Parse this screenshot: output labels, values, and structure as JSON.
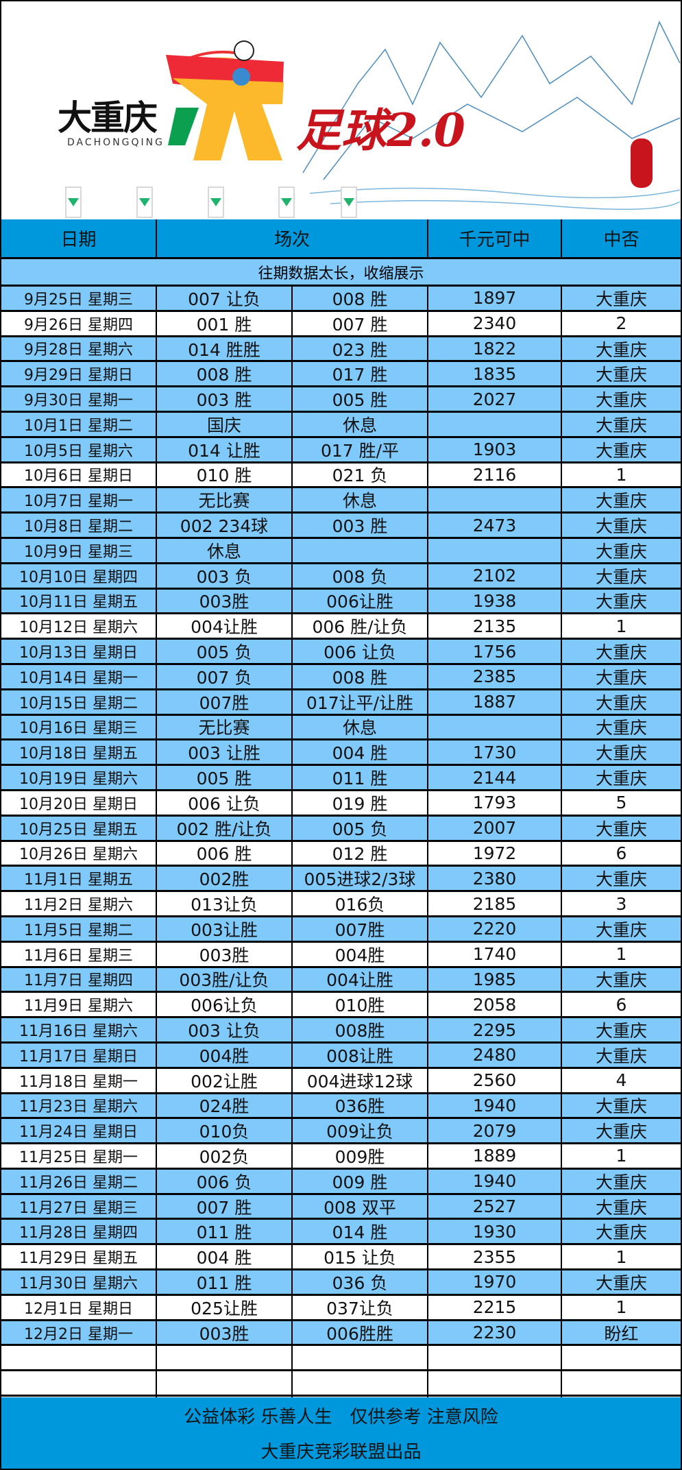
{
  "banner": {
    "brand": "大重庆",
    "brand_sub": "DACHONGQING",
    "title": "足球2.0",
    "colors": {
      "red": "#c8141c",
      "yellow": "#f7b52b",
      "green": "#0aa050"
    }
  },
  "header": {
    "date": "日期",
    "matches": "场次",
    "prize": "千元可中",
    "result": "中否"
  },
  "note": "往期数据太长，收缩展示",
  "rows": [
    {
      "date": "9月25日 星期三",
      "m1": "007 让负",
      "m2": "008 胜",
      "prize": "1897",
      "result": "大重庆",
      "hit": true
    },
    {
      "date": "9月26日 星期四",
      "m1": "001 胜",
      "m2": "007 胜",
      "prize": "2340",
      "result": "2",
      "hit": false
    },
    {
      "date": "9月28日 星期六",
      "m1": "014 胜胜",
      "m2": "023 胜",
      "prize": "1822",
      "result": "大重庆",
      "hit": true
    },
    {
      "date": "9月29日 星期日",
      "m1": "008 胜",
      "m2": "017 胜",
      "prize": "1835",
      "result": "大重庆",
      "hit": true
    },
    {
      "date": "9月30日 星期一",
      "m1": "003 胜",
      "m2": "005 胜",
      "prize": "2027",
      "result": "大重庆",
      "hit": true
    },
    {
      "date": "10月1日 星期二",
      "m1": "国庆",
      "m2": "休息",
      "prize": "",
      "result": "大重庆",
      "hit": true
    },
    {
      "date": "10月5日 星期六",
      "m1": "014 让胜",
      "m2": "017 胜/平",
      "prize": "1903",
      "result": "大重庆",
      "hit": true
    },
    {
      "date": "10月6日 星期日",
      "m1": "010 胜",
      "m2": "021 负",
      "prize": "2116",
      "result": "1",
      "hit": false
    },
    {
      "date": "10月7日 星期一",
      "m1": "无比赛",
      "m2": "休息",
      "prize": "",
      "result": "大重庆",
      "hit": true
    },
    {
      "date": "10月8日 星期二",
      "m1": "002 234球",
      "m2": "003 胜",
      "prize": "2473",
      "result": "大重庆",
      "hit": true
    },
    {
      "date": "10月9日 星期三",
      "m1": "休息",
      "m2": "",
      "prize": "",
      "result": "大重庆",
      "hit": true
    },
    {
      "date": "10月10日 星期四",
      "m1": "003 负",
      "m2": "008 负",
      "prize": "2102",
      "result": "大重庆",
      "hit": true
    },
    {
      "date": "10月11日 星期五",
      "m1": "003胜",
      "m2": "006让胜",
      "prize": "1938",
      "result": "大重庆",
      "hit": true
    },
    {
      "date": "10月12日 星期六",
      "m1": "004让胜",
      "m2": "006 胜/让负",
      "prize": "2135",
      "result": "1",
      "hit": false
    },
    {
      "date": "10月13日 星期日",
      "m1": "005 负",
      "m2": "006 让负",
      "prize": "1756",
      "result": "大重庆",
      "hit": true
    },
    {
      "date": "10月14日 星期一",
      "m1": "007 负",
      "m2": "008 胜",
      "prize": "2385",
      "result": "大重庆",
      "hit": true
    },
    {
      "date": "10月15日 星期二",
      "m1": "007胜",
      "m2": "017让平/让胜",
      "prize": "1887",
      "result": "大重庆",
      "hit": true
    },
    {
      "date": "10月16日 星期三",
      "m1": "无比赛",
      "m2": "休息",
      "prize": "",
      "result": "大重庆",
      "hit": true
    },
    {
      "date": "10月18日 星期五",
      "m1": "003 让胜",
      "m2": "004 胜",
      "prize": "1730",
      "result": "大重庆",
      "hit": true
    },
    {
      "date": "10月19日 星期六",
      "m1": "005 胜",
      "m2": "011 胜",
      "prize": "2144",
      "result": "大重庆",
      "hit": true
    },
    {
      "date": "10月20日 星期日",
      "m1": "006 让负",
      "m2": "019 胜",
      "prize": "1793",
      "result": "5",
      "hit": false
    },
    {
      "date": "10月25日 星期五",
      "m1": "002 胜/让负",
      "m2": "005 负",
      "prize": "2007",
      "result": "大重庆",
      "hit": true
    },
    {
      "date": "10月26日 星期六",
      "m1": "006 胜",
      "m2": "012 胜",
      "prize": "1972",
      "result": "6",
      "hit": false
    },
    {
      "date": "11月1日 星期五",
      "m1": "002胜",
      "m2": "005进球2/3球",
      "prize": "2380",
      "result": "大重庆",
      "hit": true
    },
    {
      "date": "11月2日 星期六",
      "m1": "013让负",
      "m2": "016负",
      "prize": "2185",
      "result": "3",
      "hit": false
    },
    {
      "date": "11月5日 星期二",
      "m1": "003让胜",
      "m2": "007胜",
      "prize": "2220",
      "result": "大重庆",
      "hit": true
    },
    {
      "date": "11月6日 星期三",
      "m1": "003胜",
      "m2": "004胜",
      "prize": "1740",
      "result": "1",
      "hit": false
    },
    {
      "date": "11月7日 星期四",
      "m1": "003胜/让负",
      "m2": "004让胜",
      "prize": "1985",
      "result": "大重庆",
      "hit": true
    },
    {
      "date": "11月9日 星期六",
      "m1": "006让负",
      "m2": "010胜",
      "prize": "2058",
      "result": "6",
      "hit": false
    },
    {
      "date": "11月16日 星期六",
      "m1": "003 让负",
      "m2": "008胜",
      "prize": "2295",
      "result": "大重庆",
      "hit": true
    },
    {
      "date": "11月17日 星期日",
      "m1": "004胜",
      "m2": "008让胜",
      "prize": "2480",
      "result": "大重庆",
      "hit": true
    },
    {
      "date": "11月18日 星期一",
      "m1": "002让胜",
      "m2": "004进球12球",
      "prize": "2560",
      "result": "4",
      "hit": false
    },
    {
      "date": "11月23日 星期六",
      "m1": "024胜",
      "m2": "036胜",
      "prize": "1940",
      "result": "大重庆",
      "hit": true
    },
    {
      "date": "11月24日 星期日",
      "m1": "010负",
      "m2": "009让负",
      "prize": "2079",
      "result": "大重庆",
      "hit": true
    },
    {
      "date": "11月25日 星期一",
      "m1": "002负",
      "m2": "009胜",
      "prize": "1889",
      "result": "1",
      "hit": false
    },
    {
      "date": "11月26日 星期二",
      "m1": "006 负",
      "m2": "009 胜",
      "prize": "1940",
      "result": "大重庆",
      "hit": true
    },
    {
      "date": "11月27日 星期三",
      "m1": "007 胜",
      "m2": "008 双平",
      "prize": "2527",
      "result": "大重庆",
      "hit": true
    },
    {
      "date": "11月28日 星期四",
      "m1": "011 胜",
      "m2": "014 胜",
      "prize": "1930",
      "result": "大重庆",
      "hit": true
    },
    {
      "date": "11月29日 星期五",
      "m1": "004 胜",
      "m2": "015 让负",
      "prize": "2355",
      "result": "1",
      "hit": false
    },
    {
      "date": "11月30日 星期六",
      "m1": "011 胜",
      "m2": "036 负",
      "prize": "1970",
      "result": "大重庆",
      "hit": true
    },
    {
      "date": "12月1日 星期日",
      "m1": "025让胜",
      "m2": "037让负",
      "prize": "2215",
      "result": "1",
      "hit": false
    },
    {
      "date": "12月2日 星期一",
      "m1": "003胜",
      "m2": "006胜胜",
      "prize": "2230",
      "result": "盼红",
      "hit": true
    }
  ],
  "empty_rows": 3,
  "footer": {
    "line1": "公益体彩 乐善人生　仅供参考 注意风险",
    "line2": "大重庆竞彩联盟出品"
  }
}
